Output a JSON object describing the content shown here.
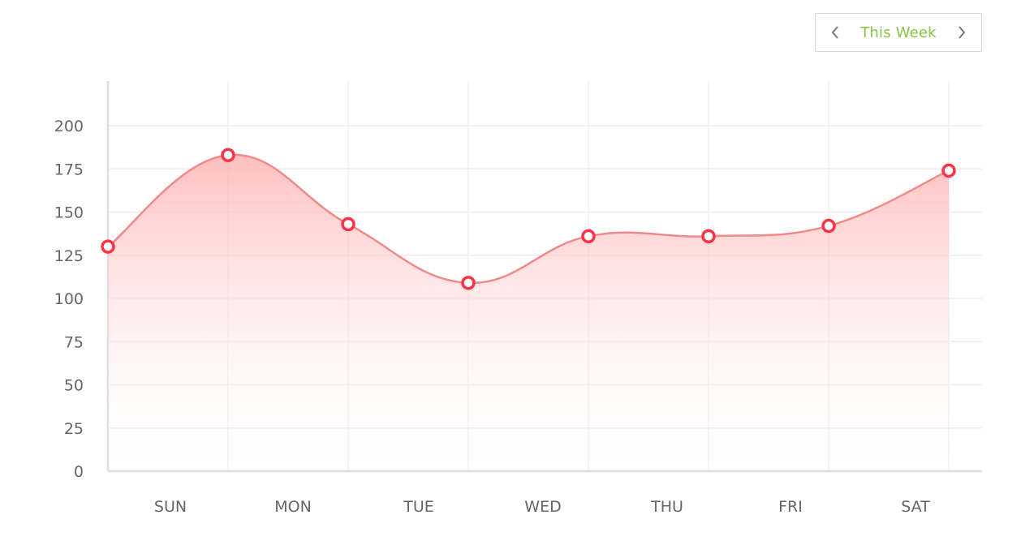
{
  "nav": {
    "label": "This Week",
    "prev_icon": "chevron-left-icon",
    "next_icon": "chevron-right-icon"
  },
  "chart_data": {
    "type": "area",
    "title": "",
    "xlabel": "",
    "ylabel": "",
    "categories": [
      "SUN",
      "MON",
      "TUE",
      "WED",
      "THU",
      "FRI",
      "SAT"
    ],
    "yticks": [
      0,
      25,
      50,
      75,
      100,
      125,
      150,
      175,
      200
    ],
    "ylim": [
      0,
      200
    ],
    "grid": true,
    "legend": "none",
    "points": [
      130,
      183,
      143,
      109,
      136,
      136,
      142,
      174
    ],
    "line_color": "#f08a8a",
    "marker_color": "#ff3344",
    "fill_color": "#ffb3b3"
  }
}
